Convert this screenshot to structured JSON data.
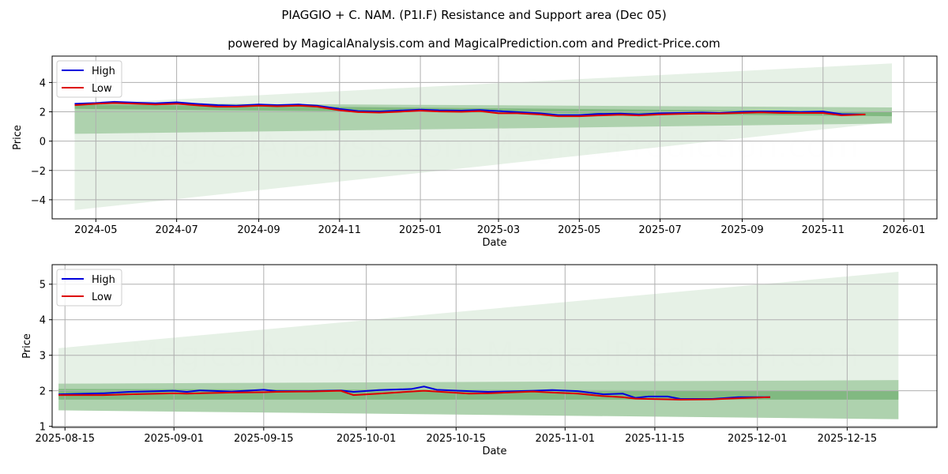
{
  "title": "PIAGGIO + C. NAM. (P1I.F) Resistance and Support area (Dec 05)",
  "subtitle": "powered by MagicalAnalysis.com and MagicalPrediction.com and Predict-Price.com",
  "watermark": "MagicalAnalysis.com    MagicalPrediction.com",
  "colors": {
    "high": "#0000dd",
    "low": "#dd0000",
    "band": "#2e8b2e"
  },
  "chart_data": [
    {
      "type": "line",
      "xlabel": "Date",
      "ylabel": "Price",
      "ylim": [
        -5.3,
        5.8
      ],
      "xlim": [
        "2024-03-29",
        "2026-01-26"
      ],
      "yticks": [
        -4,
        -2,
        0,
        2,
        4
      ],
      "xticks": [
        "2024-05-01",
        "2024-07-01",
        "2024-09-01",
        "2024-11-01",
        "2025-01-01",
        "2025-03-01",
        "2025-05-01",
        "2025-07-01",
        "2025-09-01",
        "2025-11-01",
        "2026-01-01"
      ],
      "xtick_labels": [
        "2024-05",
        "2024-07",
        "2024-09",
        "2024-11",
        "2025-01",
        "2025-03",
        "2025-05",
        "2025-07",
        "2025-09",
        "2025-11",
        "2026-01"
      ],
      "legend": {
        "position": "top-left",
        "entries": [
          "High",
          "Low"
        ]
      },
      "bands": [
        {
          "start": "2024-04-15",
          "end": "2025-12-23",
          "lower": [
            -4.7,
            1.3
          ],
          "upper": [
            2.5,
            5.3
          ],
          "opacity": 0.12
        },
        {
          "start": "2024-04-15",
          "end": "2025-12-23",
          "lower": [
            0.5,
            1.2
          ],
          "upper": [
            2.6,
            2.3
          ],
          "opacity": 0.3
        },
        {
          "start": "2024-04-15",
          "end": "2025-12-23",
          "lower": [
            2.2,
            1.7
          ],
          "upper": [
            2.5,
            2.0
          ],
          "opacity": 0.35
        }
      ],
      "x": [
        "2024-04-15",
        "2024-05-01",
        "2024-05-15",
        "2024-06-01",
        "2024-06-15",
        "2024-07-01",
        "2024-07-15",
        "2024-08-01",
        "2024-08-15",
        "2024-09-01",
        "2024-09-15",
        "2024-10-01",
        "2024-10-15",
        "2024-11-01",
        "2024-11-15",
        "2024-12-01",
        "2024-12-15",
        "2025-01-01",
        "2025-01-15",
        "2025-02-01",
        "2025-02-15",
        "2025-03-01",
        "2025-03-15",
        "2025-04-01",
        "2025-04-15",
        "2025-05-01",
        "2025-05-15",
        "2025-06-01",
        "2025-06-15",
        "2025-07-01",
        "2025-07-15",
        "2025-08-01",
        "2025-08-15",
        "2025-09-01",
        "2025-09-15",
        "2025-10-01",
        "2025-10-15",
        "2025-11-01",
        "2025-11-15",
        "2025-12-03"
      ],
      "series": [
        {
          "name": "High",
          "values": [
            2.55,
            2.6,
            2.68,
            2.62,
            2.58,
            2.65,
            2.55,
            2.45,
            2.42,
            2.5,
            2.45,
            2.5,
            2.42,
            2.2,
            2.05,
            2.02,
            2.08,
            2.15,
            2.1,
            2.08,
            2.12,
            2.05,
            1.98,
            1.9,
            1.78,
            1.78,
            1.85,
            1.88,
            1.82,
            1.9,
            1.92,
            1.95,
            1.92,
            2.0,
            2.03,
            2.02,
            1.99,
            2.02,
            1.84,
            1.82
          ]
        },
        {
          "name": "Low",
          "values": [
            2.45,
            2.55,
            2.6,
            2.55,
            2.5,
            2.55,
            2.45,
            2.35,
            2.35,
            2.42,
            2.38,
            2.42,
            2.35,
            2.1,
            1.98,
            1.95,
            2.0,
            2.08,
            2.02,
            2.0,
            2.05,
            1.9,
            1.9,
            1.82,
            1.7,
            1.7,
            1.75,
            1.8,
            1.75,
            1.82,
            1.85,
            1.88,
            1.88,
            1.93,
            1.96,
            1.92,
            1.92,
            1.92,
            1.76,
            1.82
          ]
        }
      ]
    },
    {
      "type": "line",
      "xlabel": "Date",
      "ylabel": "Price",
      "ylim": [
        0.97,
        5.55
      ],
      "xlim": [
        "2025-08-13",
        "2025-12-29"
      ],
      "yticks": [
        1,
        2,
        3,
        4,
        5
      ],
      "xticks": [
        "2025-08-15",
        "2025-09-01",
        "2025-09-15",
        "2025-10-01",
        "2025-10-15",
        "2025-11-01",
        "2025-11-15",
        "2025-12-01",
        "2025-12-15"
      ],
      "xtick_labels": [
        "2025-08-15",
        "2025-09-01",
        "2025-09-15",
        "2025-10-01",
        "2025-10-15",
        "2025-11-01",
        "2025-11-15",
        "2025-12-01",
        "2025-12-15"
      ],
      "legend": {
        "position": "top-left",
        "entries": [
          "High",
          "Low"
        ]
      },
      "bands": [
        {
          "start": "2025-08-14",
          "end": "2025-12-23",
          "lower": [
            1.45,
            1.2
          ],
          "upper": [
            3.2,
            5.35
          ],
          "opacity": 0.12
        },
        {
          "start": "2025-08-14",
          "end": "2025-12-23",
          "lower": [
            1.45,
            1.2
          ],
          "upper": [
            2.2,
            2.3
          ],
          "opacity": 0.3
        },
        {
          "start": "2025-08-14",
          "end": "2025-12-23",
          "lower": [
            1.75,
            1.75
          ],
          "upper": [
            2.05,
            2.0
          ],
          "opacity": 0.35
        }
      ],
      "x": [
        "2025-08-14",
        "2025-08-21",
        "2025-08-25",
        "2025-09-01",
        "2025-09-03",
        "2025-09-05",
        "2025-09-10",
        "2025-09-15",
        "2025-09-17",
        "2025-09-22",
        "2025-09-27",
        "2025-09-29",
        "2025-10-03",
        "2025-10-08",
        "2025-10-10",
        "2025-10-12",
        "2025-10-17",
        "2025-10-20",
        "2025-10-27",
        "2025-10-30",
        "2025-11-03",
        "2025-11-07",
        "2025-11-10",
        "2025-11-12",
        "2025-11-14",
        "2025-11-17",
        "2025-11-19",
        "2025-11-24",
        "2025-11-28",
        "2025-12-03"
      ],
      "series": [
        {
          "name": "High",
          "values": [
            1.9,
            1.93,
            1.97,
            2.0,
            1.97,
            2.01,
            1.98,
            2.03,
            1.99,
            1.99,
            2.01,
            1.97,
            2.02,
            2.05,
            2.12,
            2.03,
            1.99,
            1.97,
            2.0,
            2.02,
            1.99,
            1.9,
            1.92,
            1.8,
            1.84,
            1.84,
            1.77,
            1.77,
            1.82,
            1.82
          ]
        },
        {
          "name": "Low",
          "values": [
            1.88,
            1.88,
            1.9,
            1.93,
            1.92,
            1.93,
            1.95,
            1.96,
            1.97,
            1.98,
            2.0,
            1.88,
            1.92,
            1.98,
            2.0,
            1.98,
            1.92,
            1.93,
            1.98,
            1.95,
            1.92,
            1.85,
            1.82,
            1.78,
            1.77,
            1.76,
            1.75,
            1.76,
            1.79,
            1.82
          ]
        }
      ]
    }
  ]
}
